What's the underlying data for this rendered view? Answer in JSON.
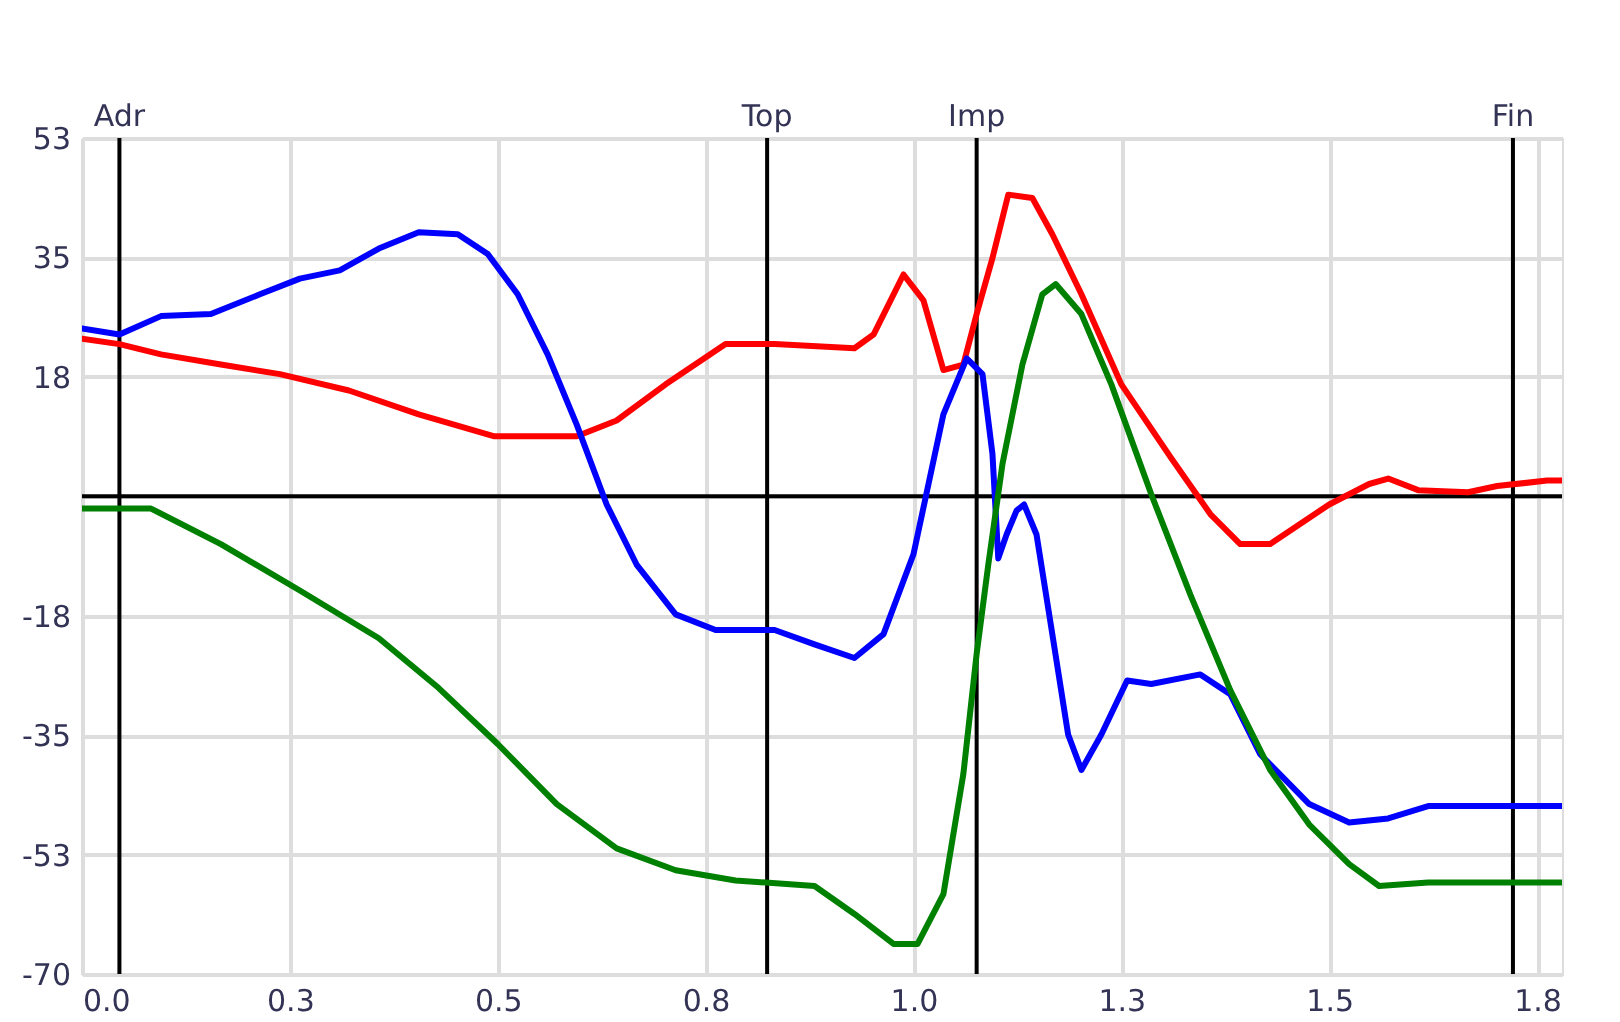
{
  "chart_data": {
    "type": "line",
    "xlim": [
      0,
      1.78
    ],
    "ylim": [
      -70,
      52.5
    ],
    "xticks": [
      {
        "value": 0,
        "label": "0.0"
      },
      {
        "value": 0.25,
        "label": "0.3"
      },
      0.5,
      {
        "value": 0.75,
        "label": "0.8"
      },
      {
        "value": 1,
        "label": "1.0"
      },
      {
        "value": 1.25,
        "label": "1.3"
      },
      1.5,
      {
        "value": 1.75,
        "label": "1.8"
      }
    ],
    "yticks": [
      -70,
      {
        "value": -52.5,
        "label": "-53"
      },
      -35,
      {
        "value": -17.5,
        "label": "-18"
      },
      {
        "value": 0,
        "label": null
      },
      {
        "value": 17.5,
        "label": "18"
      },
      35,
      {
        "value": 52.5,
        "label": "53"
      }
    ],
    "grid": true,
    "legend": false,
    "line_style": "solid",
    "marker": "none",
    "ref_lines": [
      {
        "axis": "y",
        "value": 0,
        "color": "#000000"
      },
      {
        "axis": "x",
        "value": 0.045,
        "label": "Adr",
        "color": "#000000"
      },
      {
        "axis": "x",
        "value": 0.824,
        "label": "Top",
        "color": "#000000"
      },
      {
        "axis": "x",
        "value": 1.076,
        "label": "Imp",
        "color": "#000000"
      },
      {
        "axis": "x",
        "value": 1.721,
        "label": "Fin",
        "color": "#000000"
      }
    ],
    "series": [
      {
        "color": "#ff0000",
        "x": [
          0,
          0.045,
          0.095,
          0.167,
          0.238,
          0.321,
          0.405,
          0.495,
          0.595,
          0.643,
          0.702,
          0.774,
          0.833,
          0.929,
          0.952,
          0.988,
          1.012,
          1.036,
          1.06,
          1.076,
          1.095,
          1.114,
          1.143,
          1.167,
          1.202,
          1.25,
          1.31,
          1.357,
          1.393,
          1.429,
          1.5,
          1.548,
          1.571,
          1.607,
          1.667,
          1.702,
          1.762,
          1.78
        ],
        "values": [
          23.1,
          22.3,
          20.8,
          19.3,
          17.9,
          15.5,
          12.0,
          8.8,
          8.8,
          11.1,
          16.4,
          22.3,
          22.3,
          21.7,
          23.7,
          32.5,
          28.7,
          18.5,
          19.3,
          26.7,
          34.9,
          44.2,
          43.7,
          38.4,
          29.6,
          16.4,
          5.6,
          -2.6,
          -7.0,
          -7.0,
          -1.2,
          1.8,
          2.6,
          0.9,
          0.6,
          1.5,
          2.3,
          2.3
        ]
      },
      {
        "color": "#0000ff",
        "x": [
          0,
          0.045,
          0.095,
          0.155,
          0.214,
          0.262,
          0.31,
          0.357,
          0.405,
          0.452,
          0.488,
          0.524,
          0.56,
          0.595,
          0.631,
          0.667,
          0.714,
          0.762,
          0.833,
          0.881,
          0.929,
          0.964,
          1.0,
          1.036,
          1.064,
          1.083,
          1.095,
          1.102,
          1.112,
          1.124,
          1.133,
          1.148,
          1.167,
          1.186,
          1.202,
          1.226,
          1.257,
          1.286,
          1.345,
          1.381,
          1.417,
          1.476,
          1.524,
          1.571,
          1.619,
          1.69,
          1.78
        ],
        "values": [
          24.6,
          23.7,
          26.4,
          26.7,
          29.6,
          31.9,
          33.1,
          36.3,
          38.7,
          38.4,
          35.5,
          29.6,
          20.8,
          10.5,
          -1.2,
          -10.0,
          -17.3,
          -19.6,
          -19.6,
          -21.7,
          -23.7,
          -20.2,
          -8.5,
          12.0,
          20.2,
          17.9,
          6.2,
          -9.1,
          -5.6,
          -2.1,
          -1.2,
          -5.6,
          -20.2,
          -34.9,
          -40.1,
          -34.9,
          -27.0,
          -27.5,
          -26.1,
          -29.0,
          -37.8,
          -45.1,
          -47.8,
          -47.2,
          -45.4,
          -45.4,
          -45.4
        ]
      },
      {
        "color": "#008000",
        "x": [
          0,
          0.083,
          0.167,
          0.262,
          0.357,
          0.429,
          0.5,
          0.571,
          0.643,
          0.714,
          0.786,
          0.881,
          0.929,
          0.976,
          1.005,
          1.036,
          1.06,
          1.076,
          1.09,
          1.107,
          1.131,
          1.155,
          1.171,
          1.202,
          1.238,
          1.286,
          1.333,
          1.381,
          1.429,
          1.476,
          1.524,
          1.56,
          1.619,
          1.78
        ],
        "values": [
          -1.8,
          -1.8,
          -7.0,
          -13.8,
          -20.8,
          -28.1,
          -36.3,
          -45.1,
          -51.6,
          -54.8,
          -56.3,
          -57.1,
          -61.2,
          -65.6,
          -65.6,
          -58.3,
          -40.7,
          -23.1,
          -10.0,
          4.7,
          19.3,
          29.6,
          31.1,
          26.7,
          16.4,
          0.3,
          -14.4,
          -28.4,
          -40.1,
          -48.1,
          -53.9,
          -57.1,
          -56.6,
          -56.6
        ]
      }
    ]
  }
}
